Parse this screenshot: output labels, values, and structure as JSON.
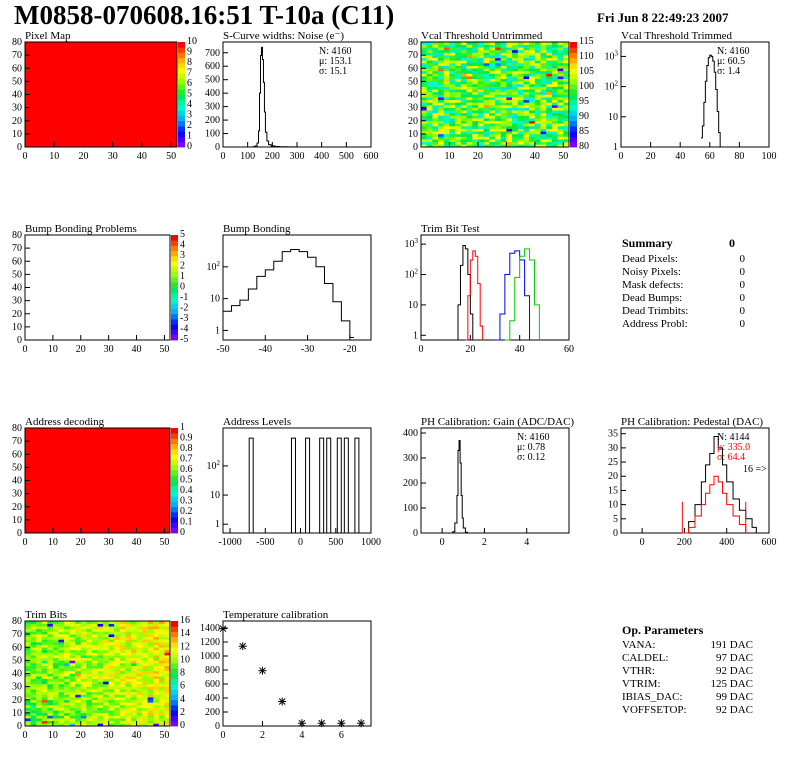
{
  "header": {
    "title": "M0858-070608.16:51 T-10a (C11)",
    "date": "Fri Jun  8 22:49:23 2007"
  },
  "chart_data": [
    {
      "id": "pixel_map",
      "type": "heatmap",
      "title": "Pixel Map",
      "xlim": [
        0,
        52
      ],
      "ylim": [
        0,
        80
      ],
      "xticks": [
        0,
        10,
        20,
        30,
        40,
        50
      ],
      "yticks": [
        0,
        10,
        20,
        30,
        40,
        50,
        60,
        70,
        80
      ],
      "palette": "root",
      "zmax": 10,
      "fill": "uniform",
      "value": 10,
      "zticks": [
        0,
        1,
        2,
        3,
        4,
        5,
        6,
        7,
        8,
        9,
        10
      ]
    },
    {
      "id": "scurve_noise",
      "type": "line",
      "title": "S-Curve widths: Noise (e⁻)",
      "xlim": [
        0,
        600
      ],
      "ylim": [
        0,
        780
      ],
      "log": false,
      "xticks": [
        0,
        100,
        200,
        300,
        400,
        500,
        600
      ],
      "yticks": [
        0,
        100,
        200,
        300,
        400,
        500,
        600,
        700
      ],
      "series": [
        {
          "color": "#000000",
          "x": [
            100,
            120,
            130,
            138,
            144,
            148,
            152,
            156,
            160,
            164,
            168,
            172,
            178,
            185,
            195,
            210,
            230,
            260,
            300
          ],
          "y": [
            0,
            2,
            8,
            30,
            120,
            400,
            680,
            740,
            650,
            480,
            260,
            110,
            45,
            18,
            8,
            4,
            2,
            1,
            0
          ]
        }
      ],
      "stats": {
        "n": "N: 4160",
        "mean": "μ: 153.1",
        "sigma": "σ: 15.1"
      }
    },
    {
      "id": "vcal_untrimmed",
      "type": "heatmap",
      "title": "Vcal Threshold Untrimmed",
      "xlim": [
        0,
        52
      ],
      "ylim": [
        0,
        80
      ],
      "xticks": [
        0,
        10,
        20,
        30,
        40,
        50
      ],
      "yticks": [
        0,
        10,
        20,
        30,
        40,
        50,
        60,
        70,
        80
      ],
      "palette": "root",
      "fill": "random",
      "seed": 11,
      "center": 0.55,
      "spread": 0.22,
      "zticks": [
        80,
        85,
        90,
        95,
        100,
        105,
        110,
        115
      ]
    },
    {
      "id": "vcal_trimmed",
      "type": "line",
      "title": "Vcal Threshold Trimmed",
      "xlim": [
        0,
        100
      ],
      "ylim": [
        1,
        3000
      ],
      "log": true,
      "xticks": [
        0,
        20,
        40,
        60,
        80,
        100
      ],
      "yticks": [
        1,
        10,
        100,
        1000
      ],
      "series": [
        {
          "color": "#000000",
          "x": [
            54,
            55,
            56,
            57,
            58,
            59,
            60,
            61,
            62,
            63,
            64,
            65,
            66,
            67,
            72,
            73
          ],
          "y": [
            2,
            5,
            30,
            150,
            500,
            900,
            1100,
            1000,
            700,
            300,
            80,
            15,
            3,
            1,
            1,
            1
          ]
        }
      ],
      "stats": {
        "n": "N: 4160",
        "mean": "μ: 60.5",
        "sigma": "σ: 1.4"
      }
    },
    {
      "id": "bump_problems",
      "type": "heatmap",
      "title": "Bump Bonding Problems",
      "xlim": [
        0,
        52
      ],
      "ylim": [
        0,
        80
      ],
      "xticks": [
        0,
        10,
        20,
        30,
        40,
        50
      ],
      "yticks": [
        0,
        10,
        20,
        30,
        40,
        50,
        60,
        70,
        80
      ],
      "palette": "root",
      "fill": "empty",
      "zticks": [
        -5,
        -4,
        -3,
        -2,
        -1,
        0,
        1,
        2,
        3,
        4,
        5
      ]
    },
    {
      "id": "bump_bonding",
      "type": "line",
      "title": "Bump Bonding",
      "xlim": [
        -50,
        -15
      ],
      "ylim": [
        0.5,
        1000
      ],
      "log": true,
      "xticks": [
        -50,
        -40,
        -30,
        -20
      ],
      "yticks": [
        1,
        10,
        100
      ],
      "series": [
        {
          "color": "#000000",
          "x": [
            -50,
            -48,
            -46,
            -44,
            -42,
            -40,
            -38,
            -36,
            -34,
            -32,
            -30,
            -28,
            -26,
            -24,
            -22,
            -20,
            -19
          ],
          "y": [
            4,
            6,
            9,
            20,
            50,
            80,
            150,
            300,
            350,
            300,
            200,
            100,
            30,
            8,
            2,
            0.6,
            0.6
          ]
        }
      ]
    },
    {
      "id": "trim_bit_test",
      "type": "line",
      "title": "Trim Bit Test",
      "xlim": [
        0,
        60
      ],
      "ylim": [
        0.7,
        2000
      ],
      "log": true,
      "xticks": [
        0,
        20,
        40,
        60
      ],
      "yticks": [
        1,
        10,
        100,
        1000
      ],
      "series": [
        {
          "color": "#000000",
          "x": [
            14,
            15,
            16,
            17,
            18,
            19,
            20,
            21,
            22
          ],
          "y": [
            0.7,
            10,
            200,
            900,
            700,
            100,
            5,
            0.7,
            0.7
          ]
        },
        {
          "color": "#ff0000",
          "x": [
            18,
            19,
            20,
            21,
            22,
            23,
            24,
            25
          ],
          "y": [
            0.7,
            20,
            300,
            600,
            400,
            50,
            2,
            0.7
          ]
        },
        {
          "color": "#0000ff",
          "x": [
            30,
            32,
            34,
            36,
            38,
            40,
            42,
            44
          ],
          "y": [
            0.7,
            5,
            100,
            500,
            600,
            300,
            20,
            0.7
          ]
        },
        {
          "color": "#00cc00",
          "x": [
            34,
            36,
            38,
            40,
            42,
            44,
            46,
            48
          ],
          "y": [
            0.7,
            3,
            80,
            400,
            700,
            300,
            10,
            0.7
          ]
        }
      ]
    },
    {
      "id": "address_decoding",
      "type": "heatmap",
      "title": "Address decoding",
      "xlim": [
        0,
        52
      ],
      "ylim": [
        0,
        80
      ],
      "xticks": [
        0,
        10,
        20,
        30,
        40,
        50
      ],
      "yticks": [
        0,
        10,
        20,
        30,
        40,
        50,
        60,
        70,
        80
      ],
      "palette": "root",
      "zmax": 1,
      "fill": "uniform",
      "value": 1,
      "zticks": [
        0,
        0.1,
        0.2,
        0.3,
        0.4,
        0.5,
        0.6,
        0.7,
        0.8,
        0.9,
        1
      ]
    },
    {
      "id": "address_levels",
      "type": "line",
      "title": "Address Levels",
      "xlim": [
        -1100,
        1000
      ],
      "ylim": [
        0.5,
        2000
      ],
      "log": true,
      "xticks": [
        -1000,
        -500,
        0,
        500,
        1000
      ],
      "yticks": [
        1,
        10,
        100
      ],
      "series": [
        {
          "color": "#000000",
          "spikes": [
            -700,
            -100,
            100,
            300,
            400,
            550,
            650,
            800
          ],
          "peak": 900
        }
      ]
    },
    {
      "id": "ph_gain",
      "type": "line",
      "title": "PH Calibration: Gain (ADC/DAC)",
      "xlim": [
        -1,
        6
      ],
      "ylim": [
        0,
        420
      ],
      "log": false,
      "xticks": [
        0,
        2,
        4
      ],
      "yticks": [
        0,
        100,
        200,
        300,
        400
      ],
      "series": [
        {
          "color": "#000000",
          "x": [
            0.3,
            0.5,
            0.6,
            0.7,
            0.75,
            0.8,
            0.85,
            0.9,
            0.95,
            1.0,
            1.1,
            1.2
          ],
          "y": [
            0,
            5,
            40,
            150,
            330,
            370,
            280,
            150,
            60,
            20,
            3,
            0
          ]
        }
      ],
      "stats": {
        "n": "N: 4160",
        "mean": "μ: 0.78",
        "sigma": "σ: 0.12"
      }
    },
    {
      "id": "ph_pedestal",
      "type": "line",
      "title": "PH Calibration: Pedestal (DAC)",
      "xlim": [
        -100,
        600
      ],
      "ylim": [
        0,
        37
      ],
      "log": false,
      "xticks": [
        0,
        200,
        400,
        600
      ],
      "yticks": [
        0,
        5,
        10,
        15,
        20,
        25,
        30,
        35
      ],
      "series": [
        {
          "color": "#000000",
          "x": [
            190,
            220,
            250,
            280,
            300,
            320,
            340,
            360,
            380,
            400,
            430,
            460,
            490,
            520,
            540
          ],
          "y": [
            0,
            4,
            10,
            18,
            24,
            28,
            34,
            30,
            24,
            18,
            12,
            8,
            5,
            2,
            0
          ]
        },
        {
          "color": "#ff0000",
          "x": [
            190,
            220,
            250,
            280,
            300,
            320,
            340,
            360,
            380,
            400,
            430,
            460,
            490
          ],
          "y": [
            0,
            2,
            6,
            10,
            14,
            17,
            20,
            18,
            14,
            10,
            6,
            3,
            0
          ]
        }
      ],
      "markers": [
        {
          "x": 190,
          "y": 11,
          "color": "#ff0000"
        },
        {
          "x": 490,
          "y": 11,
          "color": "#ff0000"
        }
      ],
      "annotation": "16 =>",
      "stats": {
        "n": "N: 4144",
        "mean": "μ: 335.0",
        "sigma": "σ: 64.4"
      }
    },
    {
      "id": "trim_bits",
      "type": "heatmap",
      "title": "Trim Bits",
      "xlim": [
        0,
        52
      ],
      "ylim": [
        0,
        80
      ],
      "xticks": [
        0,
        10,
        20,
        30,
        40,
        50
      ],
      "yticks": [
        0,
        10,
        20,
        30,
        40,
        50,
        60,
        70,
        80
      ],
      "palette": "root",
      "fill": "gradient",
      "seed": 5,
      "center": 0.62,
      "spread": 0.12,
      "zticks": [
        0,
        2,
        4,
        6,
        8,
        10,
        12,
        14,
        16
      ]
    },
    {
      "id": "temperature_calibration",
      "type": "scatter",
      "title": "Temperature calibration",
      "xlim": [
        0,
        7.5
      ],
      "ylim": [
        0,
        1500
      ],
      "log": false,
      "xticks": [
        0,
        2,
        4,
        6
      ],
      "yticks": [
        0,
        200,
        400,
        600,
        800,
        1000,
        1200,
        1400
      ],
      "x": [
        0,
        1,
        2,
        3,
        4,
        5,
        6,
        7
      ],
      "y": [
        1390,
        1140,
        790,
        350,
        40,
        40,
        40,
        40
      ]
    }
  ],
  "summary": {
    "title": "Summary",
    "total": "0",
    "rows": [
      {
        "label": "Dead Pixels:",
        "value": "0"
      },
      {
        "label": "Noisy Pixels:",
        "value": "0"
      },
      {
        "label": "Mask defects:",
        "value": "0"
      },
      {
        "label": "Dead Bumps:",
        "value": "0"
      },
      {
        "label": "Dead Trimbits:",
        "value": "0"
      },
      {
        "label": "Address Probl:",
        "value": "0"
      }
    ]
  },
  "op_parameters": {
    "title": "Op. Parameters",
    "rows": [
      {
        "label": "VANA:",
        "value": "191 DAC"
      },
      {
        "label": "CALDEL:",
        "value": "97 DAC"
      },
      {
        "label": "VTHR:",
        "value": "92 DAC"
      },
      {
        "label": "VTRIM:",
        "value": "125 DAC"
      },
      {
        "label": "IBIAS_DAC:",
        "value": "99 DAC"
      },
      {
        "label": "VOFFSETOP:",
        "value": "92 DAC"
      }
    ]
  }
}
